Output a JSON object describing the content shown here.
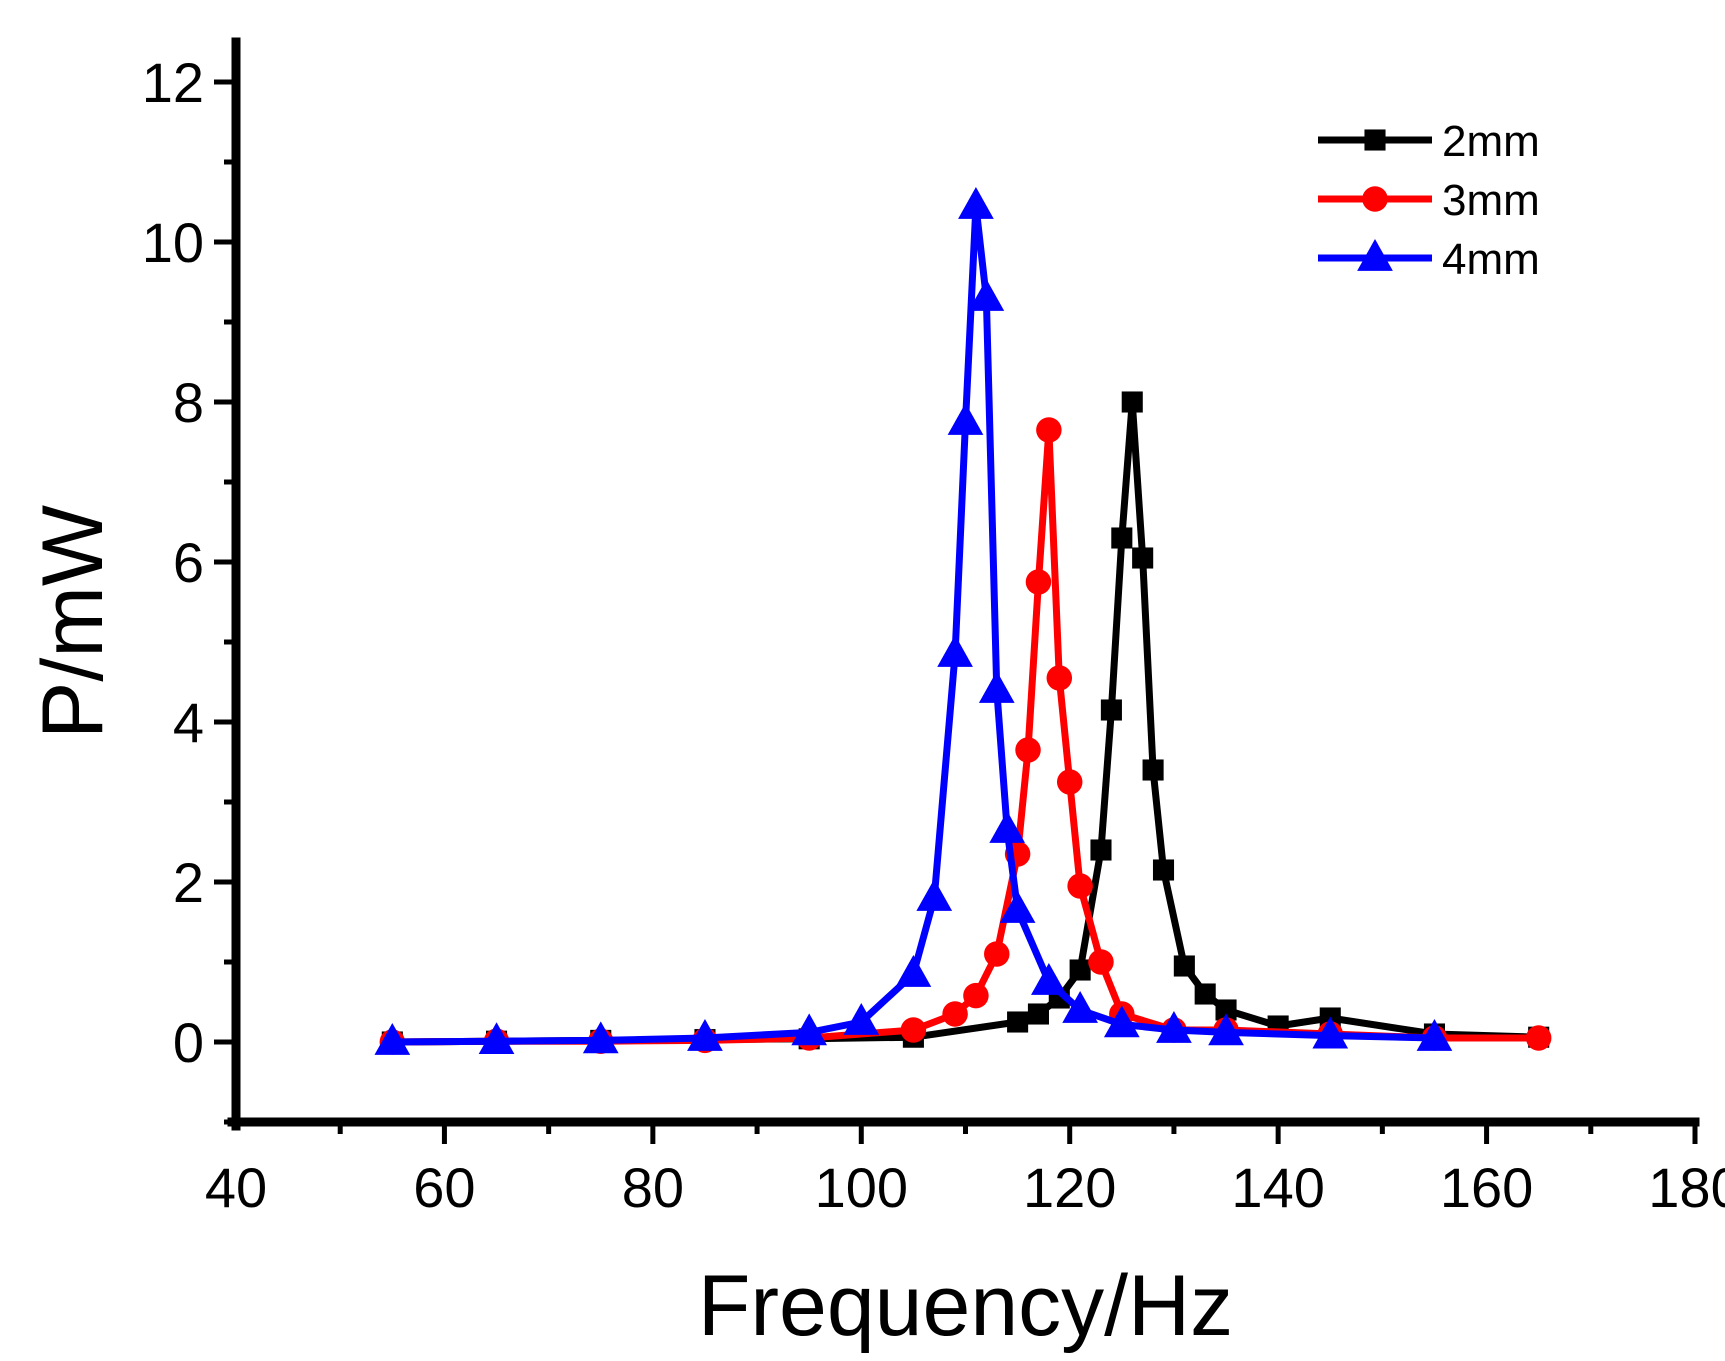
{
  "chart_data": {
    "type": "line",
    "title": "",
    "xlabel": "Frequency/Hz",
    "ylabel": "P/mW",
    "xlim": [
      40,
      180
    ],
    "ylim": [
      -1,
      12.5
    ],
    "x_ticks": [
      40,
      60,
      80,
      100,
      120,
      140,
      160,
      180
    ],
    "y_ticks": [
      0,
      2,
      4,
      6,
      8,
      10,
      12
    ],
    "x_tick_labels": [
      "40",
      "60",
      "80",
      "100",
      "120",
      "140",
      "160",
      "180"
    ],
    "y_tick_labels": [
      "0",
      "2",
      "4",
      "6",
      "8",
      "10",
      "12"
    ],
    "grid": false,
    "legend_position": "top-right",
    "series": [
      {
        "name": "2mm",
        "color": "#000000",
        "marker": "square",
        "x": [
          55,
          65,
          75,
          85,
          95,
          105,
          115,
          117,
          119,
          121,
          123,
          124,
          125,
          126,
          127,
          128,
          129,
          131,
          133,
          135,
          140,
          145,
          155,
          165
        ],
        "y": [
          0.0,
          0.01,
          0.02,
          0.03,
          0.04,
          0.06,
          0.25,
          0.35,
          0.55,
          0.9,
          2.4,
          4.15,
          6.3,
          8.0,
          6.05,
          3.4,
          2.15,
          0.95,
          0.6,
          0.4,
          0.2,
          0.3,
          0.1,
          0.06
        ]
      },
      {
        "name": "3mm",
        "color": "#ff0000",
        "marker": "circle",
        "x": [
          55,
          65,
          75,
          85,
          95,
          105,
          109,
          111,
          113,
          115,
          116,
          117,
          118,
          119,
          120,
          121,
          123,
          125,
          130,
          135,
          145,
          155,
          165
        ],
        "y": [
          0.0,
          0.01,
          0.01,
          0.02,
          0.05,
          0.15,
          0.35,
          0.58,
          1.1,
          2.35,
          3.65,
          5.75,
          7.65,
          4.55,
          3.25,
          1.95,
          1.0,
          0.35,
          0.15,
          0.15,
          0.1,
          0.05,
          0.05
        ]
      },
      {
        "name": "4mm",
        "color": "#0000ff",
        "marker": "triangle",
        "x": [
          55,
          65,
          75,
          85,
          95,
          100,
          105,
          107,
          109,
          110,
          111,
          112,
          113,
          114,
          115,
          118,
          121,
          125,
          130,
          135,
          145,
          155
        ],
        "y": [
          0.0,
          0.01,
          0.02,
          0.05,
          0.12,
          0.25,
          0.85,
          1.8,
          4.85,
          7.75,
          10.45,
          9.3,
          4.4,
          2.65,
          1.65,
          0.75,
          0.4,
          0.22,
          0.15,
          0.12,
          0.08,
          0.05
        ]
      }
    ]
  }
}
